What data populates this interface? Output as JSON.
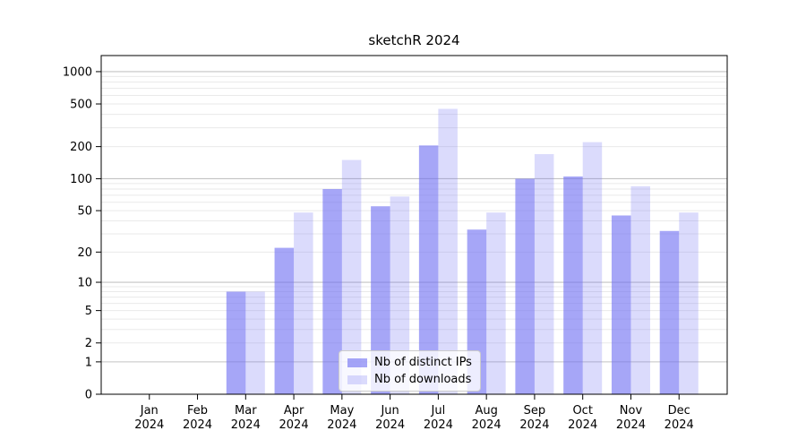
{
  "chart_data": {
    "type": "bar",
    "title": "sketchR 2024",
    "xlabel": "",
    "ylabel": "",
    "yscale": "log10(1+y)",
    "categories": [
      "Jan",
      "Feb",
      "Mar",
      "Apr",
      "May",
      "Jun",
      "Jul",
      "Aug",
      "Sep",
      "Oct",
      "Nov",
      "Dec"
    ],
    "year_label": "2024",
    "series": [
      {
        "name": "Nb of distinct IPs",
        "color": "#7070f2",
        "opacity": 0.62,
        "values": [
          0,
          0,
          8,
          22,
          80,
          55,
          205,
          33,
          100,
          105,
          45,
          32
        ]
      },
      {
        "name": "Nb of downloads",
        "color": "#7070f2",
        "opacity": 0.25,
        "values": [
          0,
          0,
          8,
          48,
          150,
          68,
          450,
          48,
          170,
          220,
          85,
          48
        ]
      }
    ],
    "yticks": [
      0,
      1,
      2,
      5,
      10,
      20,
      50,
      100,
      200,
      500,
      1000
    ],
    "major_gridlines": [
      1,
      10,
      100,
      1000
    ],
    "minor_gridline_decades": [
      1,
      10,
      100
    ],
    "ylim": [
      0,
      1400
    ],
    "grid": true,
    "legend_position": "lower center",
    "colors": {
      "major_grid": "#c3c3c3",
      "minor_grid": "#eaeaea",
      "axis": "#000000",
      "text": "#000000"
    }
  }
}
